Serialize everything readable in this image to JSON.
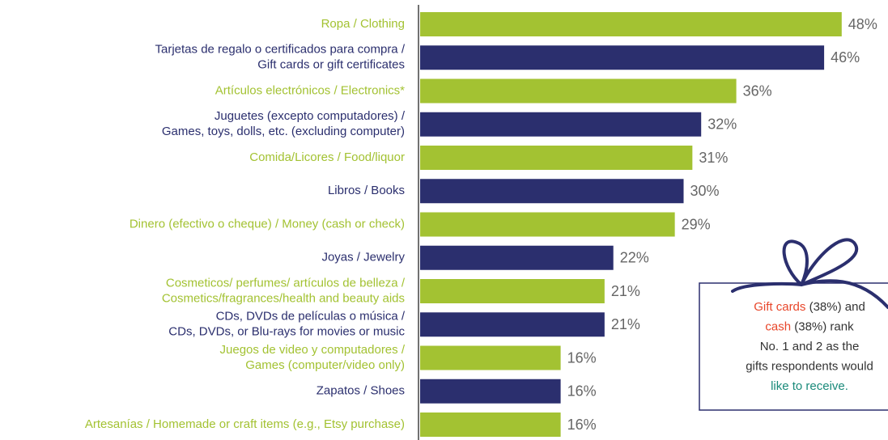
{
  "chart_data": {
    "type": "bar",
    "orientation": "horizontal",
    "categories": [
      [
        "Ropa / Clothing"
      ],
      [
        "Tarjetas de regalo o certificados para compra /",
        "Gift cards or gift certificates"
      ],
      [
        "Artículos electrónicos / Electronics*"
      ],
      [
        "Juguetes (excepto computadores) /",
        "Games, toys, dolls, etc. (excluding computer)"
      ],
      [
        "Comida/Licores / Food/liquor"
      ],
      [
        "Libros / Books"
      ],
      [
        "Dinero (efectivo o cheque) / Money (cash or check)"
      ],
      [
        "Joyas / Jewelry"
      ],
      [
        "Cosmeticos/ perfumes/ artículos de belleza /",
        "Cosmetics/fragrances/health and beauty aids"
      ],
      [
        "CDs, DVDs de películas o música /",
        "CDs, DVDs, or Blu-rays for movies or music"
      ],
      [
        "Juegos de video y computadores /",
        "Games (computer/video only)"
      ],
      [
        "Zapatos / Shoes"
      ],
      [
        "Artesanías / Homemade or craft items (e.g., Etsy purchase)"
      ]
    ],
    "values": [
      48,
      46,
      36,
      32,
      31,
      30,
      29,
      22,
      21,
      21,
      16,
      16,
      16
    ],
    "value_labels": [
      "48%",
      "46%",
      "36%",
      "32%",
      "31%",
      "30%",
      "29%",
      "22%",
      "21%",
      "21%",
      "16%",
      "16%",
      "16%"
    ],
    "colors": [
      "#a3c232",
      "#2b2f6e",
      "#a3c232",
      "#2b2f6e",
      "#a3c232",
      "#2b2f6e",
      "#a3c232",
      "#2b2f6e",
      "#a3c232",
      "#2b2f6e",
      "#a3c232",
      "#2b2f6e",
      "#a3c232"
    ],
    "xlim": [
      0,
      50
    ],
    "annotation": [
      [
        {
          "text": "Gift cards",
          "color": "#e8462a"
        },
        {
          "text": " (38%) and",
          "color": "#333333"
        }
      ],
      [
        {
          "text": "cash",
          "color": "#e8462a"
        },
        {
          "text": " (38%) rank",
          "color": "#333333"
        }
      ],
      [
        {
          "text": "No. 1 and 2 as the",
          "color": "#333333"
        }
      ],
      [
        {
          "text": "gifts respondents would",
          "color": "#333333"
        }
      ],
      [
        {
          "text": "like to receive.",
          "color": "#1a8a7a"
        }
      ]
    ]
  }
}
